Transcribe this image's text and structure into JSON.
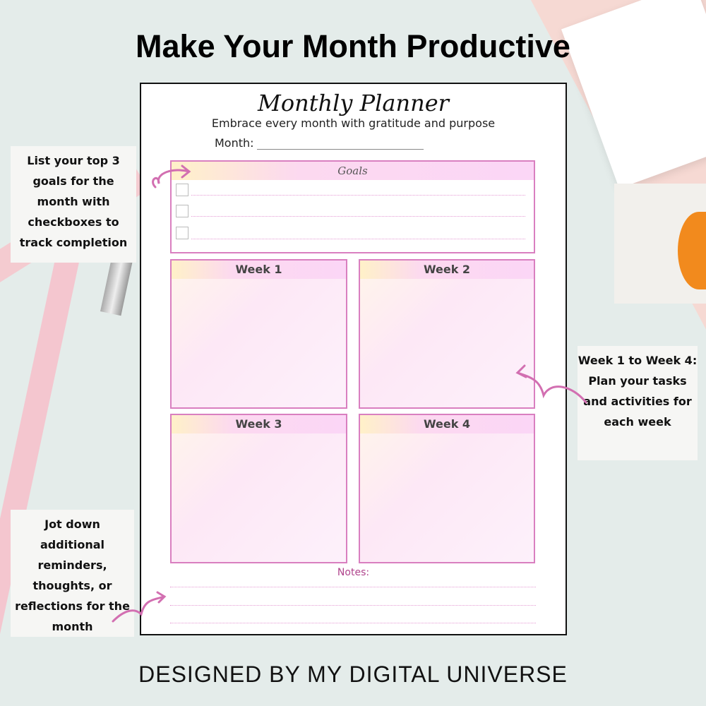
{
  "headline": "Make Your Month Productive",
  "planner": {
    "title": "Monthly Planner",
    "subtitle": "Embrace every month with gratitude and purpose",
    "month_label": "Month:",
    "goals": {
      "label": "Goals",
      "items": [
        "",
        "",
        ""
      ]
    },
    "weeks": [
      "Week 1",
      "Week 2",
      "Week 3",
      "Week 4"
    ],
    "notes_label": "Notes:"
  },
  "callouts": {
    "goals": "List your top 3 goals for the month with checkboxes to track completion",
    "weeks": "Week 1 to Week 4: Plan your tasks and activities for each week",
    "notes": "Jot down additional reminders, thoughts, or reflections for the month"
  },
  "footer": "DESIGNED BY MY DIGITAL UNIVERSE",
  "colors": {
    "background": "#e4ecea",
    "accent_pink": "#d97fc0",
    "arrow": "#d26fb1"
  }
}
